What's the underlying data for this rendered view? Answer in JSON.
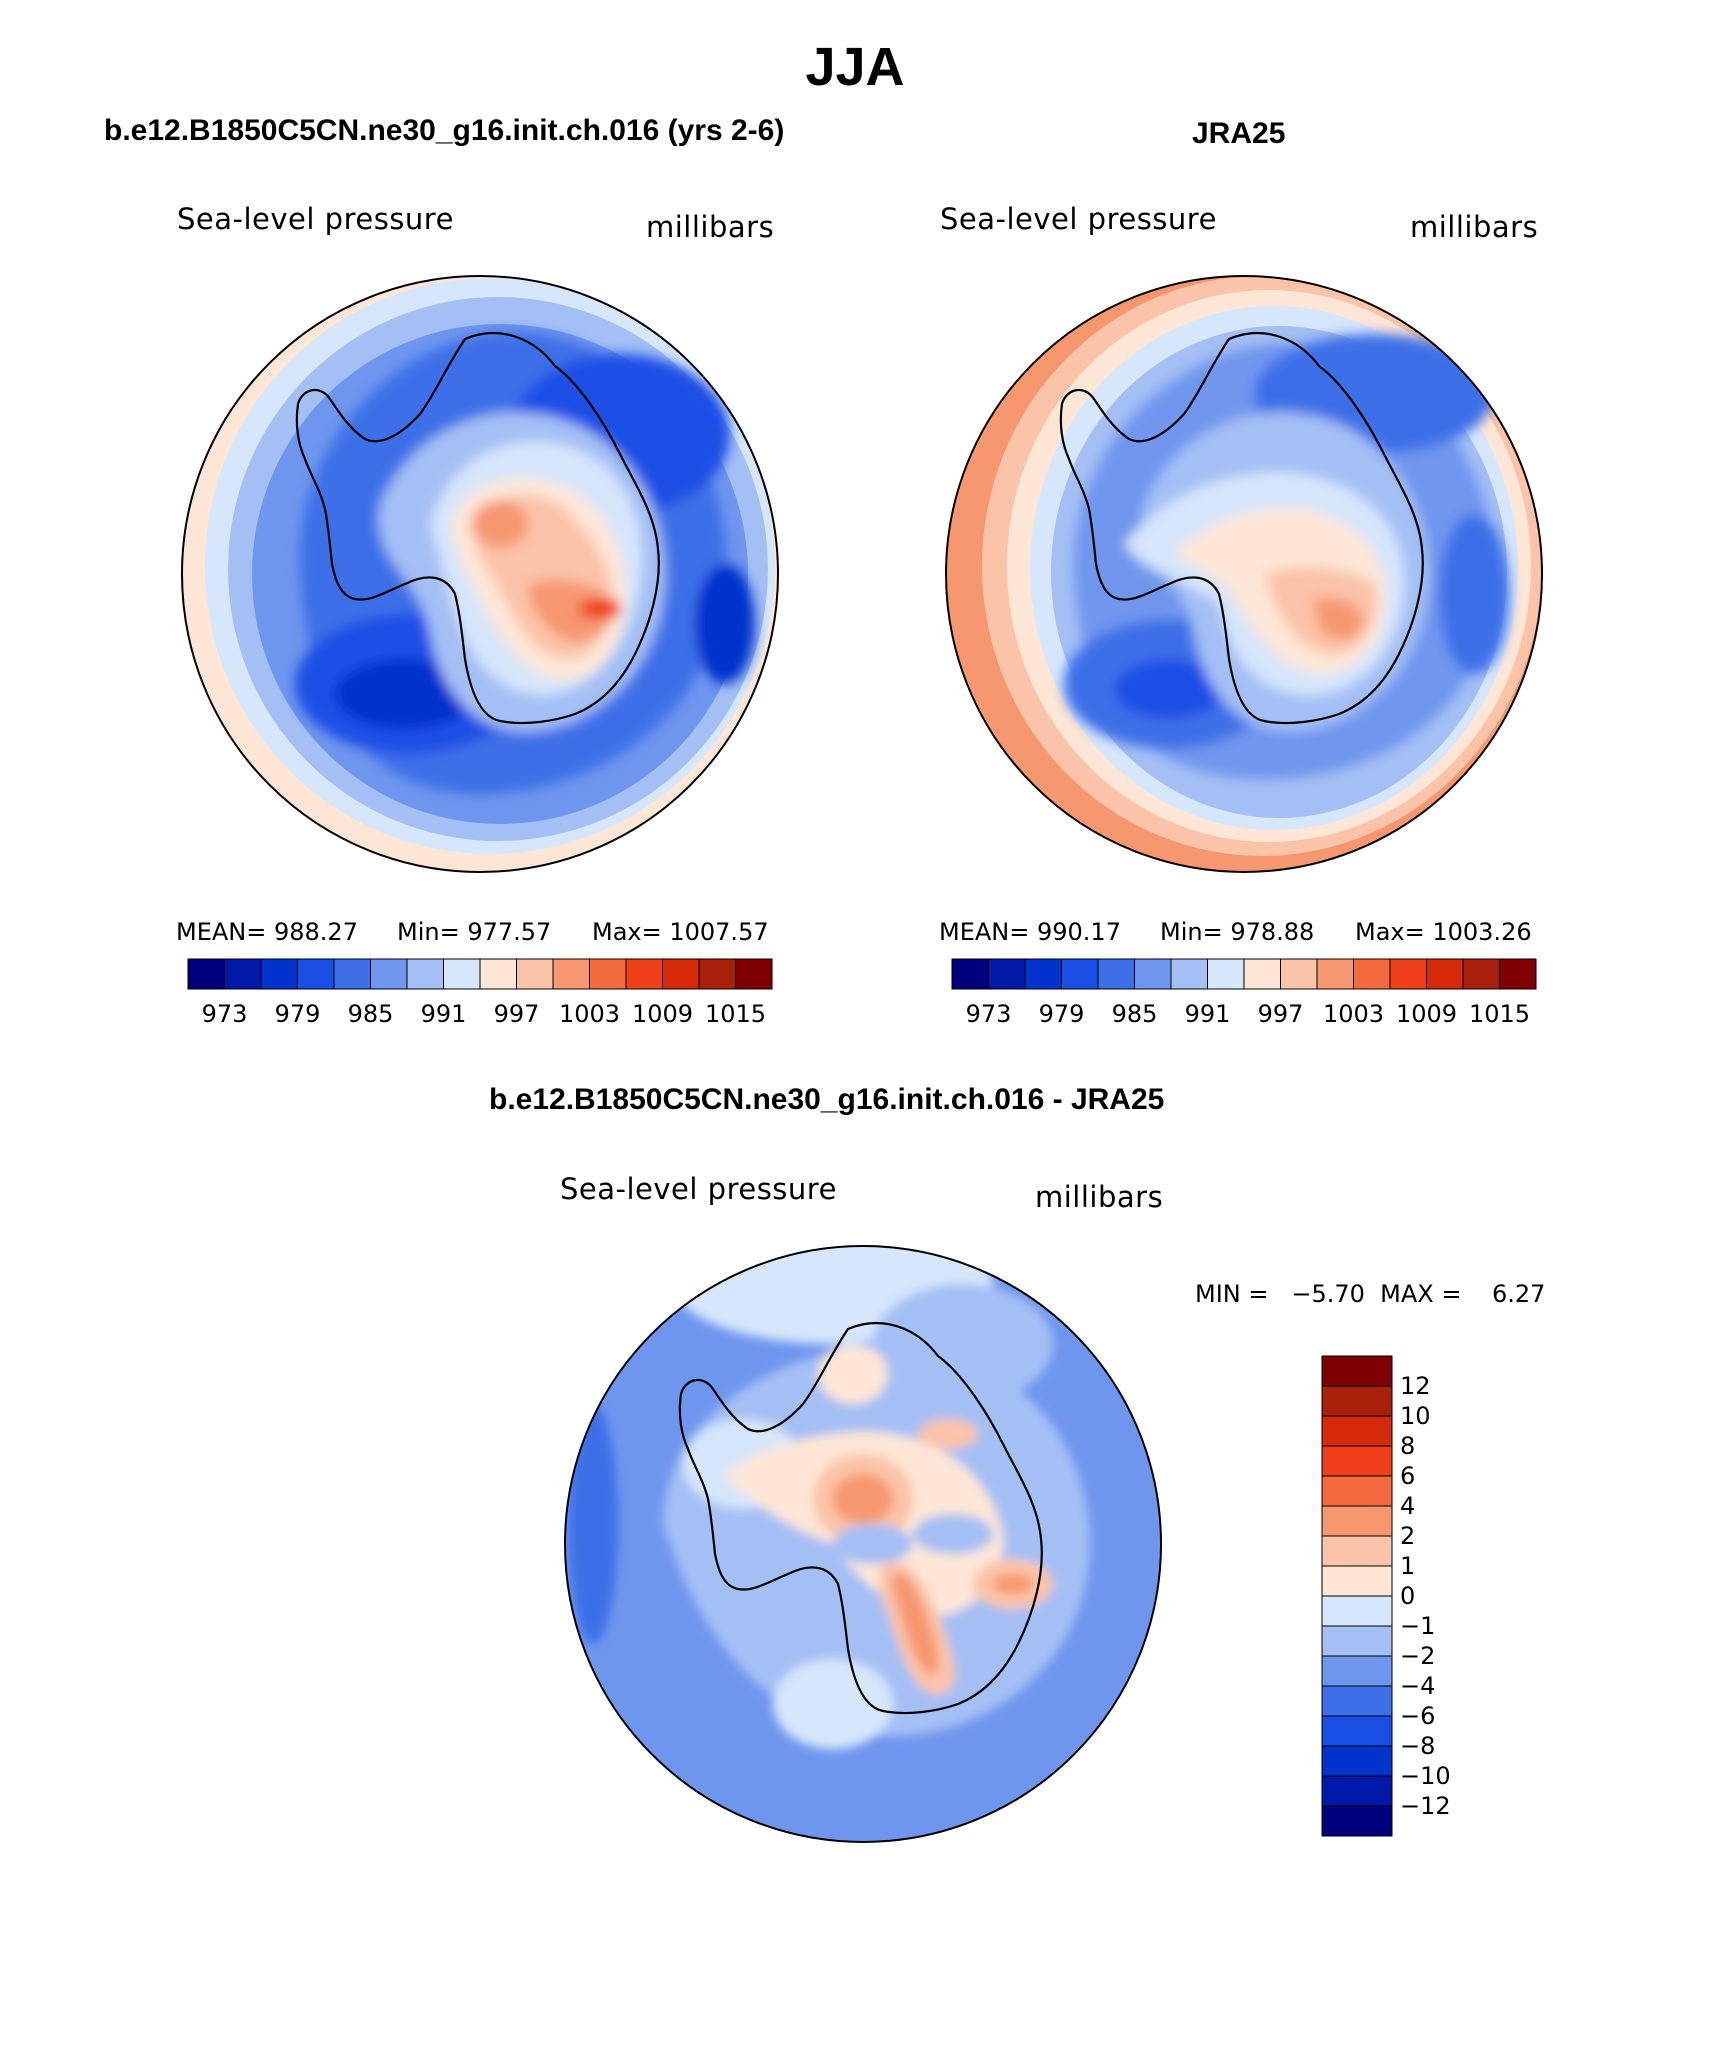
{
  "figure": {
    "title": "JJA"
  },
  "chart_data": [
    {
      "type": "heatmap",
      "title": "b.e12.B1850C5CN.ne30_g16.init.ch.016 (yrs 2-6)",
      "variable": "Sea-level pressure",
      "units": "millibars",
      "projection": "south polar stereographic",
      "stats": {
        "mean": "MEAN= 988.27",
        "min": "Min= 977.57",
        "max": "Max= 1007.57"
      },
      "colorbar": {
        "orientation": "horizontal",
        "tick_labels": [
          "973",
          "979",
          "985",
          "991",
          "997",
          "1003",
          "1009",
          "1015"
        ],
        "colors": [
          "#00007f",
          "#0019a8",
          "#0033cc",
          "#1a4fe6",
          "#3d6fe8",
          "#6f96ee",
          "#a4bff4",
          "#d6e6fb",
          "#fde6d6",
          "#fbc3a7",
          "#f6976f",
          "#f36b3f",
          "#ef3f1a",
          "#d42a0a",
          "#a81f0a",
          "#7f0000"
        ]
      },
      "field_regions": {
        "outer_ring": "#fde6d6",
        "mid_ring": "#d6e6fb",
        "ocean_lows": [
          "#3d6fe8",
          "#1a4fe6",
          "#0033cc"
        ],
        "continent_highs": [
          "#fbc3a7",
          "#f6976f",
          "#ef3f1a"
        ]
      }
    },
    {
      "type": "heatmap",
      "title": "JRA25",
      "variable": "Sea-level pressure",
      "units": "millibars",
      "projection": "south polar stereographic",
      "stats": {
        "mean": "MEAN= 990.17",
        "min": "Min= 978.88",
        "max": "Max= 1003.26"
      },
      "colorbar": {
        "orientation": "horizontal",
        "tick_labels": [
          "973",
          "979",
          "985",
          "991",
          "997",
          "1003",
          "1009",
          "1015"
        ],
        "colors": [
          "#00007f",
          "#0019a8",
          "#0033cc",
          "#1a4fe6",
          "#3d6fe8",
          "#6f96ee",
          "#a4bff4",
          "#d6e6fb",
          "#fde6d6",
          "#fbc3a7",
          "#f6976f",
          "#f36b3f",
          "#ef3f1a",
          "#d42a0a",
          "#a81f0a",
          "#7f0000"
        ]
      },
      "field_regions": {
        "outer_ring": "#f6976f",
        "mid_ring": "#fbc3a7",
        "ocean_lows": [
          "#6f96ee",
          "#3d6fe8",
          "#1a4fe6"
        ],
        "continent_highs": [
          "#fde6d6",
          "#fbc3a7",
          "#f6976f"
        ]
      }
    },
    {
      "type": "heatmap",
      "title": "b.e12.B1850C5CN.ne30_g16.init.ch.016 - JRA25",
      "variable": "Sea-level pressure",
      "units": "millibars",
      "projection": "south polar stereographic",
      "stats": {
        "minmax": "MIN =   −5.70  MAX =    6.27"
      },
      "colorbar": {
        "orientation": "vertical",
        "tick_labels": [
          "12",
          "10",
          "8",
          "6",
          "4",
          "2",
          "1",
          "0",
          "−1",
          "−2",
          "−4",
          "−6",
          "−8",
          "−10",
          "−12"
        ],
        "colors": [
          "#7f0000",
          "#a81f0a",
          "#d42a0a",
          "#ef3f1a",
          "#f36b3f",
          "#f6976f",
          "#fbc3a7",
          "#fde6d6",
          "#d6e6fb",
          "#a4bff4",
          "#6f96ee",
          "#3d6fe8",
          "#1a4fe6",
          "#0033cc",
          "#0019a8",
          "#00007f"
        ]
      },
      "field_regions": {
        "background": "#6f96ee",
        "secondary": [
          "#a4bff4",
          "#d6e6fb"
        ],
        "continent_highs": [
          "#fbc3a7",
          "#f6976f"
        ]
      }
    }
  ]
}
